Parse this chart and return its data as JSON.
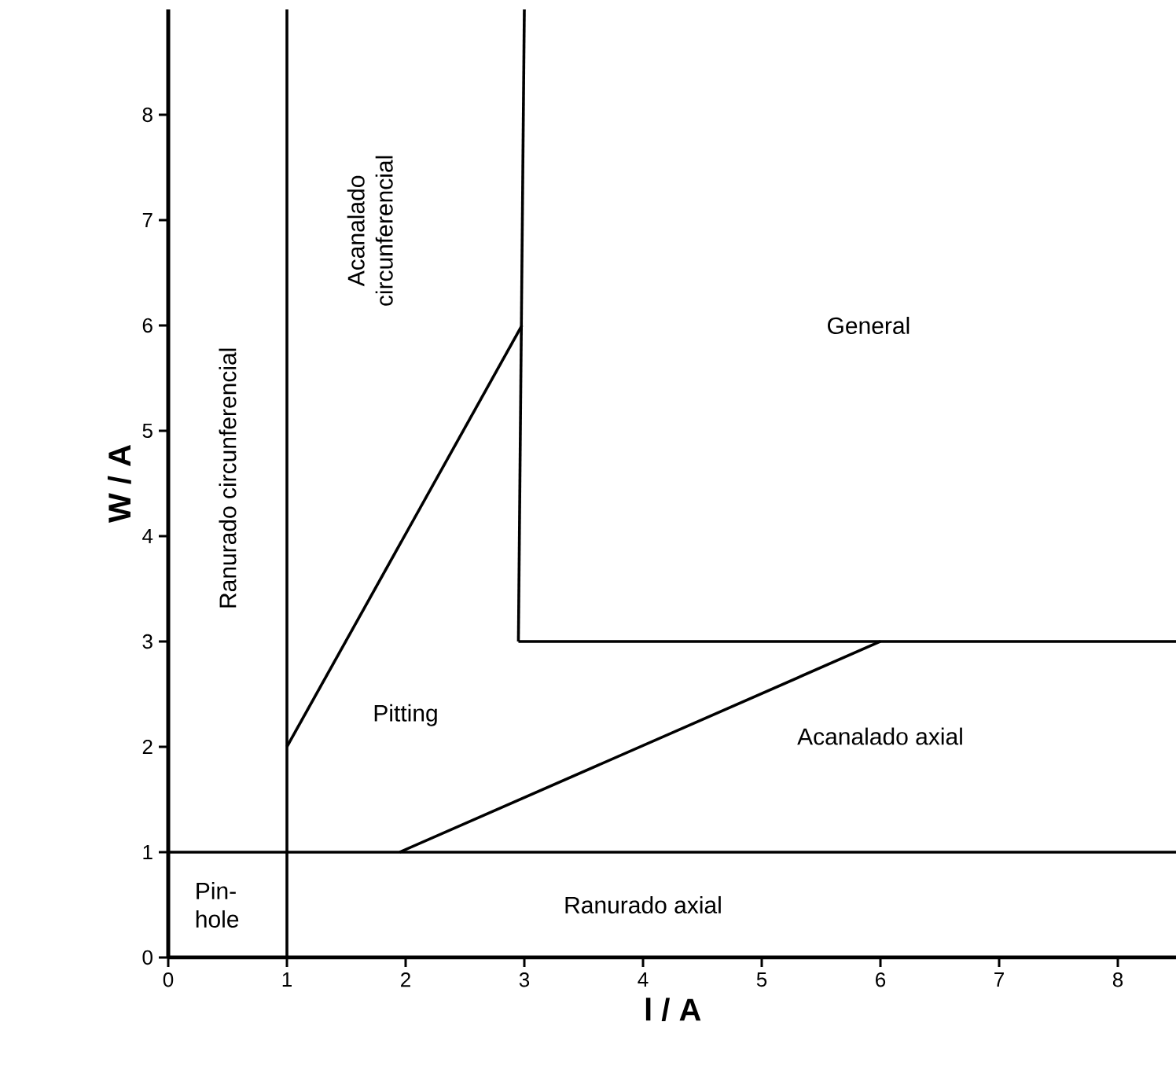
{
  "chart_data": {
    "type": "line",
    "xlabel": "l / A",
    "ylabel": "W / A",
    "xlim": [
      0,
      8.5
    ],
    "ylim": [
      0,
      9
    ],
    "xticks": [
      0,
      1,
      2,
      3,
      4,
      5,
      6,
      7,
      8
    ],
    "yticks": [
      0,
      1,
      2,
      3,
      4,
      5,
      6,
      7,
      8
    ],
    "marker": "none",
    "line_style": "solid",
    "grid": false,
    "series": [
      {
        "color": "#000000",
        "x": [
          1,
          1
        ],
        "values": [
          0,
          9
        ]
      },
      {
        "color": "#000000",
        "x": [
          0,
          8.5
        ],
        "values": [
          1,
          1
        ]
      },
      {
        "color": "#000000",
        "x": [
          1,
          2.98
        ],
        "values": [
          2,
          6
        ]
      },
      {
        "color": "#000000",
        "x": [
          2.95,
          3
        ],
        "values": [
          3,
          9
        ]
      },
      {
        "color": "#000000",
        "x": [
          2.95,
          8.5
        ],
        "values": [
          3,
          3
        ]
      },
      {
        "color": "#000000",
        "x": [
          1.95,
          6
        ],
        "values": [
          1,
          3
        ]
      }
    ],
    "annotations": [
      "Ranurado circunferencial",
      "Acanalado circunferencial",
      "General",
      "Pitting",
      "Acanalado axial",
      "Pin-hole",
      "Ranurado axial"
    ]
  }
}
